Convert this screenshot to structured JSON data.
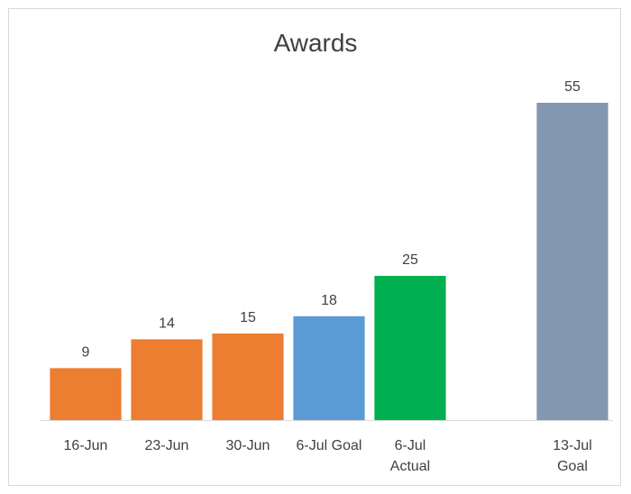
{
  "chart_data": {
    "type": "bar",
    "title": "Awards",
    "categories": [
      [
        "16-Jun"
      ],
      [
        "23-Jun"
      ],
      [
        "30-Jun"
      ],
      [
        "6-Jul Goal"
      ],
      [
        "6-Jul",
        "Actual"
      ],
      [],
      [
        "13-Jul",
        "Goal"
      ]
    ],
    "values": [
      9,
      14,
      15,
      18,
      25,
      null,
      55
    ],
    "colors": [
      "#ed7d31",
      "#ed7d31",
      "#ed7d31",
      "#5b9bd5",
      "#00b050",
      null,
      "#8497b0"
    ],
    "ylim": [
      0,
      60
    ],
    "grid": false,
    "legend": "none",
    "data_labels": true
  }
}
